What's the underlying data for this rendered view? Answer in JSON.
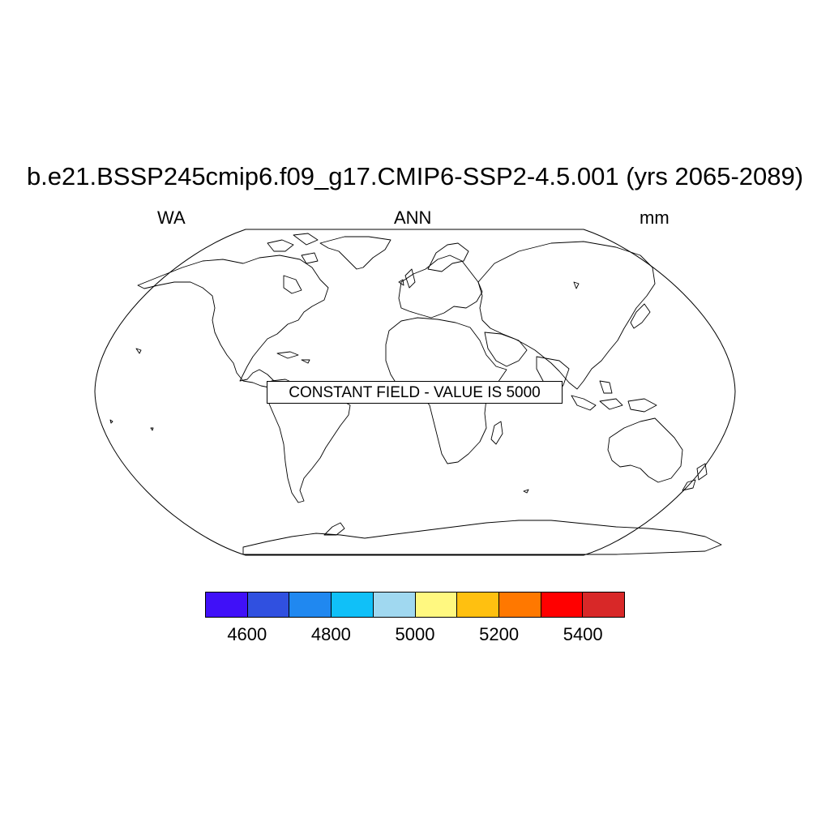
{
  "title": "b.e21.BSSP245cmip6.f09_g17.CMIP6-SSP2-4.5.001 (yrs 2065-2089)",
  "left_label": "WA",
  "center_label": "ANN",
  "right_label": "mm",
  "notice": "CONSTANT FIELD - VALUE IS 5000",
  "colorbar": {
    "colors": [
      "#4010f8",
      "#3050e0",
      "#2088f0",
      "#10c0f8",
      "#a0d8f0",
      "#fff880",
      "#ffc010",
      "#ff7800",
      "#ff0000",
      "#d82828"
    ],
    "tick_labels": [
      "4600",
      "4800",
      "5000",
      "5200",
      "5400"
    ],
    "tick_boundaries": [
      1,
      3,
      5,
      7,
      9
    ]
  }
}
